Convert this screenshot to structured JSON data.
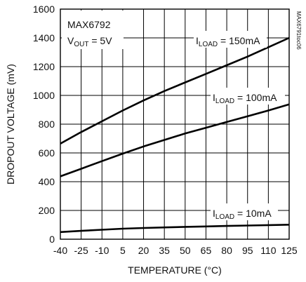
{
  "chart_data": {
    "type": "line",
    "title_line1": "MAX6792",
    "title_line2_pre": "V",
    "title_line2_sub": "OUT",
    "title_line2_post": " = 5V",
    "side_label": "MAX6791toc06",
    "xlabel": "TEMPERATURE (°C)",
    "ylabel": "DROPOUT VOLTAGE (mV)",
    "xlim": [
      -40,
      125
    ],
    "ylim": [
      0,
      1600
    ],
    "x_ticks": [
      -40,
      -25,
      -10,
      5,
      20,
      35,
      50,
      65,
      80,
      95,
      110,
      125
    ],
    "x_tick_labels": [
      "-40",
      "-25",
      "-10",
      "5",
      "20",
      "35",
      "50",
      "65",
      "80",
      "95",
      "110",
      "125"
    ],
    "y_ticks": [
      0,
      200,
      400,
      600,
      800,
      1000,
      1200,
      1400,
      1600
    ],
    "y_tick_labels": [
      "0",
      "200",
      "400",
      "600",
      "800",
      "1000",
      "1200",
      "1400",
      "1600"
    ],
    "grid": true,
    "series": [
      {
        "label_pre": "I",
        "label_sub": "LOAD",
        "label_post": " = 150mA",
        "x": [
          -40,
          -25,
          -10,
          5,
          20,
          35,
          50,
          65,
          80,
          95,
          110,
          125
        ],
        "y": [
          665,
          745,
          820,
          895,
          965,
          1030,
          1090,
          1150,
          1210,
          1270,
          1335,
          1400
        ]
      },
      {
        "label_pre": "I",
        "label_sub": "LOAD",
        "label_post": " = 100mA",
        "x": [
          -40,
          -25,
          -10,
          5,
          20,
          35,
          50,
          65,
          80,
          95,
          110,
          125
        ],
        "y": [
          437,
          490,
          543,
          595,
          645,
          690,
          735,
          775,
          815,
          855,
          895,
          938
        ]
      },
      {
        "label_pre": "I",
        "label_sub": "LOAD",
        "label_post": " = 10mA",
        "x": [
          -40,
          -25,
          -10,
          5,
          20,
          35,
          50,
          65,
          80,
          95,
          110,
          125
        ],
        "y": [
          50,
          58,
          66,
          73,
          78,
          82,
          86,
          89,
          92,
          95,
          98,
          101
        ]
      }
    ]
  }
}
